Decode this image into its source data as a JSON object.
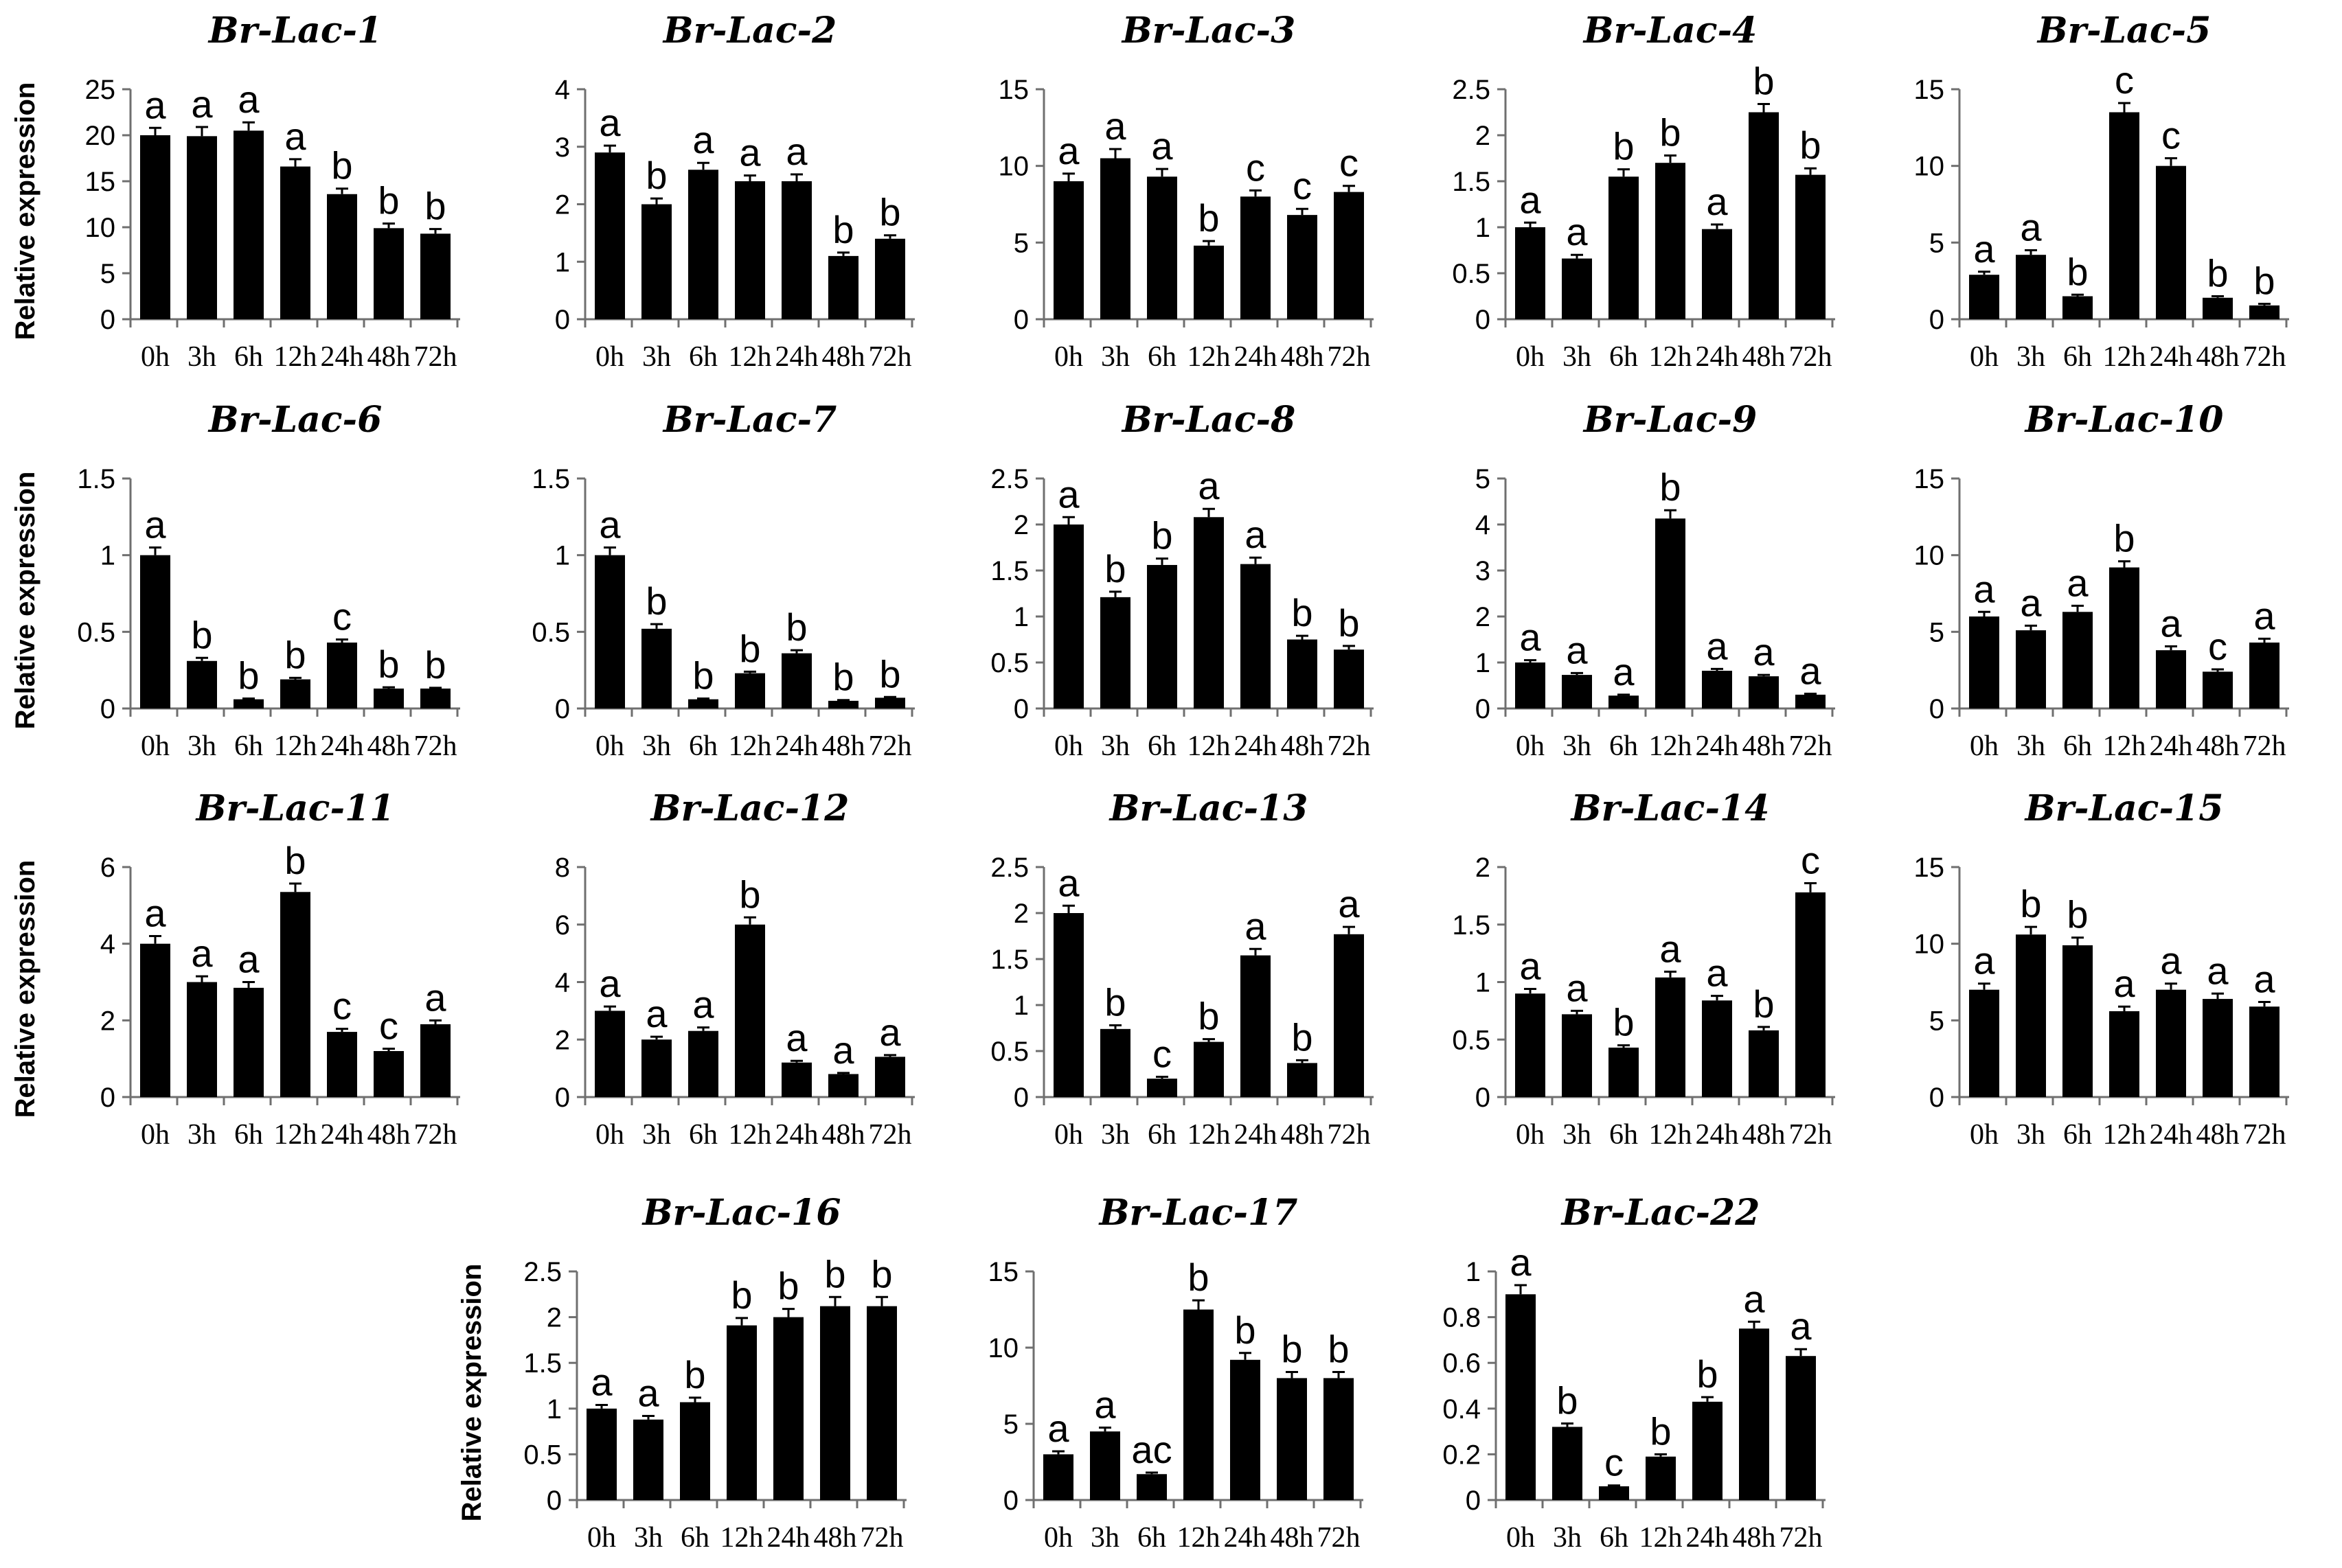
{
  "figure": {
    "ylabel": "Relative expression"
  },
  "chart_data": [
    {
      "type": "bar",
      "title": "Br-Lac-1",
      "ylabel": "Relative expression",
      "categories": [
        "0h",
        "3h",
        "6h",
        "12h",
        "24h",
        "48h",
        "72h"
      ],
      "values": [
        20,
        19.9,
        20.5,
        16.6,
        13.6,
        9.9,
        9.3
      ],
      "errors": [
        0.8,
        1.0,
        0.9,
        0.8,
        0.6,
        0.5,
        0.5
      ],
      "significance": [
        "a",
        "a",
        "a",
        "a",
        "b",
        "b",
        "b"
      ],
      "ylim": [
        0,
        25
      ],
      "yticks": [
        0,
        5,
        10,
        15,
        20,
        25
      ]
    },
    {
      "type": "bar",
      "title": "Br-Lac-2",
      "ylabel": "",
      "categories": [
        "0h",
        "3h",
        "6h",
        "12h",
        "24h",
        "48h",
        "72h"
      ],
      "values": [
        2.9,
        2.0,
        2.6,
        2.4,
        2.4,
        1.1,
        1.4
      ],
      "errors": [
        0.12,
        0.1,
        0.12,
        0.1,
        0.12,
        0.06,
        0.06
      ],
      "significance": [
        "a",
        "b",
        "a",
        "a",
        "a",
        "b",
        "b"
      ],
      "ylim": [
        0,
        4
      ],
      "yticks": [
        0,
        1,
        2,
        3,
        4
      ]
    },
    {
      "type": "bar",
      "title": "Br-Lac-3",
      "ylabel": "",
      "categories": [
        "0h",
        "3h",
        "6h",
        "12h",
        "24h",
        "48h",
        "72h"
      ],
      "values": [
        9,
        10.5,
        9.3,
        4.8,
        8,
        6.8,
        8.3
      ],
      "errors": [
        0.5,
        0.6,
        0.5,
        0.3,
        0.4,
        0.4,
        0.4
      ],
      "significance": [
        "a",
        "a",
        "a",
        "b",
        "c",
        "c",
        "c"
      ],
      "ylim": [
        0,
        15
      ],
      "yticks": [
        0,
        5,
        10,
        15
      ]
    },
    {
      "type": "bar",
      "title": "Br-Lac-4",
      "ylabel": "",
      "categories": [
        "0h",
        "3h",
        "6h",
        "12h",
        "24h",
        "48h",
        "72h"
      ],
      "values": [
        1.0,
        0.66,
        1.55,
        1.7,
        0.98,
        2.25,
        1.57
      ],
      "errors": [
        0.05,
        0.04,
        0.08,
        0.08,
        0.05,
        0.09,
        0.07
      ],
      "significance": [
        "a",
        "a",
        "b",
        "b",
        "a",
        "b",
        "b"
      ],
      "ylim": [
        0,
        2.5
      ],
      "yticks": [
        0,
        0.5,
        1,
        1.5,
        2,
        2.5
      ]
    },
    {
      "type": "bar",
      "title": "Br-Lac-5",
      "ylabel": "",
      "categories": [
        "0h",
        "3h",
        "6h",
        "12h",
        "24h",
        "48h",
        "72h"
      ],
      "values": [
        2.9,
        4.2,
        1.5,
        13.5,
        10,
        1.4,
        0.9
      ],
      "errors": [
        0.2,
        0.3,
        0.1,
        0.6,
        0.5,
        0.1,
        0.1
      ],
      "significance": [
        "a",
        "a",
        "b",
        "c",
        "c",
        "b",
        "b"
      ],
      "ylim": [
        0,
        15
      ],
      "yticks": [
        0,
        5,
        10,
        15
      ]
    },
    {
      "type": "bar",
      "title": "Br-Lac-6",
      "ylabel": "Relative expression",
      "categories": [
        "0h",
        "3h",
        "6h",
        "12h",
        "24h",
        "48h",
        "72h"
      ],
      "values": [
        1.0,
        0.31,
        0.06,
        0.19,
        0.43,
        0.13,
        0.13
      ],
      "errors": [
        0.05,
        0.02,
        0.005,
        0.01,
        0.02,
        0.008,
        0.005
      ],
      "significance": [
        "a",
        "b",
        "b",
        "b",
        "c",
        "b",
        "b"
      ],
      "ylim": [
        0,
        1.5
      ],
      "yticks": [
        0,
        0.5,
        1,
        1.5
      ]
    },
    {
      "type": "bar",
      "title": "Br-Lac-7",
      "ylabel": "",
      "categories": [
        "0h",
        "3h",
        "6h",
        "12h",
        "24h",
        "48h",
        "72h"
      ],
      "values": [
        1.0,
        0.52,
        0.06,
        0.23,
        0.36,
        0.05,
        0.07
      ],
      "errors": [
        0.05,
        0.03,
        0.005,
        0.01,
        0.02,
        0.005,
        0.005
      ],
      "significance": [
        "a",
        "b",
        "b",
        "b",
        "b",
        "b",
        "b"
      ],
      "ylim": [
        0,
        1.5
      ],
      "yticks": [
        0,
        0.5,
        1,
        1.5
      ]
    },
    {
      "type": "bar",
      "title": "Br-Lac-8",
      "ylabel": "",
      "categories": [
        "0h",
        "3h",
        "6h",
        "12h",
        "24h",
        "48h",
        "72h"
      ],
      "values": [
        2.0,
        1.21,
        1.56,
        2.08,
        1.57,
        0.75,
        0.64
      ],
      "errors": [
        0.08,
        0.06,
        0.07,
        0.09,
        0.07,
        0.04,
        0.04
      ],
      "significance": [
        "a",
        "b",
        "b",
        "a",
        "a",
        "b",
        "b"
      ],
      "ylim": [
        0,
        2.5
      ],
      "yticks": [
        0,
        0.5,
        1,
        1.5,
        2,
        2.5
      ]
    },
    {
      "type": "bar",
      "title": "Br-Lac-9",
      "ylabel": "",
      "categories": [
        "0h",
        "3h",
        "6h",
        "12h",
        "24h",
        "48h",
        "72h"
      ],
      "values": [
        1.0,
        0.73,
        0.28,
        4.13,
        0.82,
        0.7,
        0.3
      ],
      "errors": [
        0.05,
        0.04,
        0.02,
        0.18,
        0.04,
        0.03,
        0.02
      ],
      "significance": [
        "a",
        "a",
        "a",
        "b",
        "a",
        "a",
        "a"
      ],
      "ylim": [
        0,
        5
      ],
      "yticks": [
        0,
        1,
        2,
        3,
        4,
        5
      ]
    },
    {
      "type": "bar",
      "title": "Br-Lac-10",
      "ylabel": "",
      "categories": [
        "0h",
        "3h",
        "6h",
        "12h",
        "24h",
        "48h",
        "72h"
      ],
      "values": [
        6,
        5.1,
        6.3,
        9.2,
        3.8,
        2.4,
        4.3
      ],
      "errors": [
        0.3,
        0.3,
        0.4,
        0.4,
        0.25,
        0.15,
        0.25
      ],
      "significance": [
        "a",
        "a",
        "a",
        "b",
        "a",
        "c",
        "a"
      ],
      "ylim": [
        0,
        15
      ],
      "yticks": [
        0,
        5,
        10,
        15
      ]
    },
    {
      "type": "bar",
      "title": "Br-Lac-11",
      "ylabel": "Relative expression",
      "categories": [
        "0h",
        "3h",
        "6h",
        "12h",
        "24h",
        "48h",
        "72h"
      ],
      "values": [
        4.0,
        3.0,
        2.85,
        5.35,
        1.7,
        1.2,
        1.9
      ],
      "errors": [
        0.2,
        0.15,
        0.15,
        0.22,
        0.08,
        0.06,
        0.1
      ],
      "significance": [
        "a",
        "a",
        "a",
        "b",
        "c",
        "c",
        "a"
      ],
      "ylim": [
        0,
        6
      ],
      "yticks": [
        0,
        2,
        4,
        6
      ]
    },
    {
      "type": "bar",
      "title": "Br-Lac-12",
      "ylabel": "",
      "categories": [
        "0h",
        "3h",
        "6h",
        "12h",
        "24h",
        "48h",
        "72h"
      ],
      "values": [
        3.0,
        2.0,
        2.3,
        6.0,
        1.2,
        0.8,
        1.4
      ],
      "errors": [
        0.15,
        0.1,
        0.12,
        0.25,
        0.06,
        0.04,
        0.06
      ],
      "significance": [
        "a",
        "a",
        "a",
        "b",
        "a",
        "a",
        "a"
      ],
      "ylim": [
        0,
        8
      ],
      "yticks": [
        0,
        2,
        4,
        6,
        8
      ]
    },
    {
      "type": "bar",
      "title": "Br-Lac-13",
      "ylabel": "",
      "categories": [
        "0h",
        "3h",
        "6h",
        "12h",
        "24h",
        "48h",
        "72h"
      ],
      "values": [
        2.0,
        0.74,
        0.2,
        0.6,
        1.54,
        0.37,
        1.77
      ],
      "errors": [
        0.08,
        0.04,
        0.02,
        0.03,
        0.07,
        0.03,
        0.08
      ],
      "significance": [
        "a",
        "b",
        "c",
        "b",
        "a",
        "b",
        "a"
      ],
      "ylim": [
        0,
        2.5
      ],
      "yticks": [
        0,
        0.5,
        1,
        1.5,
        2,
        2.5
      ]
    },
    {
      "type": "bar",
      "title": "Br-Lac-14",
      "ylabel": "",
      "categories": [
        "0h",
        "3h",
        "6h",
        "12h",
        "24h",
        "48h",
        "72h"
      ],
      "values": [
        0.9,
        0.72,
        0.43,
        1.04,
        0.84,
        0.58,
        1.78
      ],
      "errors": [
        0.04,
        0.03,
        0.02,
        0.05,
        0.04,
        0.03,
        0.08
      ],
      "significance": [
        "a",
        "a",
        "b",
        "a",
        "a",
        "b",
        "c"
      ],
      "ylim": [
        0,
        2
      ],
      "yticks": [
        0,
        0.5,
        1,
        1.5,
        2
      ]
    },
    {
      "type": "bar",
      "title": "Br-Lac-15",
      "ylabel": "",
      "categories": [
        "0h",
        "3h",
        "6h",
        "12h",
        "24h",
        "48h",
        "72h"
      ],
      "values": [
        7,
        10.6,
        9.9,
        5.6,
        7,
        6.4,
        5.9
      ],
      "errors": [
        0.4,
        0.5,
        0.5,
        0.3,
        0.4,
        0.35,
        0.3
      ],
      "significance": [
        "a",
        "b",
        "b",
        "a",
        "a",
        "a",
        "a"
      ],
      "ylim": [
        0,
        15
      ],
      "yticks": [
        0,
        5,
        10,
        15
      ]
    },
    {
      "type": "bar",
      "title": "Br-Lac-16",
      "ylabel": "Relative expression",
      "categories": [
        "0h",
        "3h",
        "6h",
        "12h",
        "24h",
        "48h",
        "72h"
      ],
      "values": [
        1.0,
        0.88,
        1.07,
        1.91,
        2.0,
        2.12,
        2.12
      ],
      "errors": [
        0.04,
        0.04,
        0.05,
        0.08,
        0.09,
        0.1,
        0.1
      ],
      "significance": [
        "a",
        "a",
        "b",
        "b",
        "b",
        "b",
        "b"
      ],
      "ylim": [
        0,
        2.5
      ],
      "yticks": [
        0,
        0.5,
        1,
        1.5,
        2,
        2.5
      ]
    },
    {
      "type": "bar",
      "title": "Br-Lac-17",
      "ylabel": "",
      "categories": [
        "0h",
        "3h",
        "6h",
        "12h",
        "24h",
        "48h",
        "72h"
      ],
      "values": [
        3.0,
        4.5,
        1.7,
        12.5,
        9.2,
        8,
        8
      ],
      "errors": [
        0.2,
        0.25,
        0.1,
        0.6,
        0.45,
        0.4,
        0.4
      ],
      "significance": [
        "a",
        "a",
        "ac",
        "b",
        "b",
        "b",
        "b"
      ],
      "ylim": [
        0,
        15
      ],
      "yticks": [
        0,
        5,
        10,
        15
      ]
    },
    {
      "type": "bar",
      "title": "Br-Lac-22",
      "ylabel": "",
      "categories": [
        "0h",
        "3h",
        "6h",
        "12h",
        "24h",
        "48h",
        "72h"
      ],
      "values": [
        0.9,
        0.32,
        0.06,
        0.19,
        0.43,
        0.75,
        0.63
      ],
      "errors": [
        0.04,
        0.015,
        0.004,
        0.01,
        0.02,
        0.03,
        0.03
      ],
      "significance": [
        "a",
        "b",
        "c",
        "b",
        "b",
        "a",
        "a"
      ],
      "ylim": [
        0,
        1
      ],
      "yticks": [
        0,
        0.2,
        0.4,
        0.6,
        0.8,
        1
      ]
    }
  ]
}
